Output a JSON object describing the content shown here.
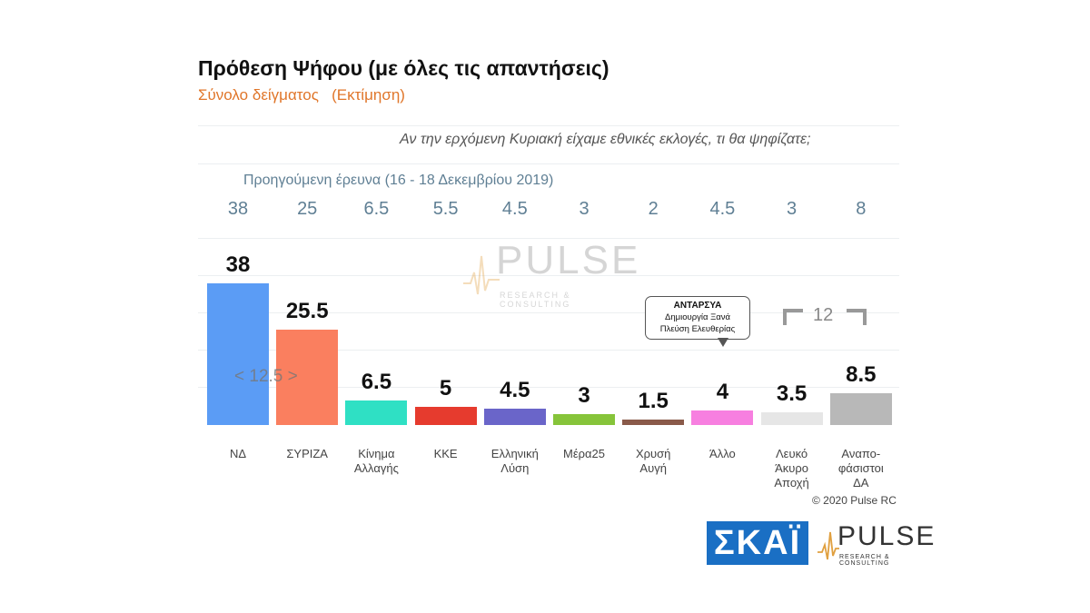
{
  "chart_data": {
    "type": "bar",
    "title": "Πρόθεση Ψήφου (με όλες τις απαντήσεις)",
    "subtitle": "Σύνολο δείγματος   (Εκτίμηση)",
    "question": "Αν την ερχόμενη Κυριακή είχαμε εθνικές εκλογές, τι θα ψηφίζατε;",
    "previous_survey_label": "Προηγούμενη έρευνα  (16 - 18 Δεκεμβρίου  2019)",
    "categories": [
      "ΝΔ",
      "ΣΥΡΙΖΑ",
      "Κίνημα Αλλαγής",
      "ΚΚΕ",
      "Ελληνική Λύση",
      "Μέρα25",
      "Χρυσή Αυγή",
      "Άλλο",
      "Λευκό Άκυρο Αποχή",
      "Αναπο-φάσιστοι ΔΑ"
    ],
    "category_lines": [
      [
        "ΝΔ"
      ],
      [
        "ΣΥΡΙΖΑ"
      ],
      [
        "Κίνημα",
        "Αλλαγής"
      ],
      [
        "ΚΚΕ"
      ],
      [
        "Ελληνική",
        "Λύση"
      ],
      [
        "Μέρα25"
      ],
      [
        "Χρυσή",
        "Αυγή"
      ],
      [
        "Άλλο"
      ],
      [
        "Λευκό",
        "Άκυρο",
        "Αποχή"
      ],
      [
        "Αναπο-",
        "φάσιστοι",
        "ΔΑ"
      ]
    ],
    "values": [
      38,
      25.5,
      6.5,
      5,
      4.5,
      3,
      1.5,
      4,
      3.5,
      8.5
    ],
    "value_labels": [
      "38",
      "25.5",
      "6.5",
      "5",
      "4.5",
      "3",
      "1.5",
      "4",
      "3.5",
      "8.5"
    ],
    "previous_values": [
      "38",
      "25",
      "6.5",
      "5.5",
      "4.5",
      "3",
      "2",
      "4.5",
      "3",
      "8"
    ],
    "colors": [
      "#5b9cf5",
      "#fa7f5f",
      "#2fe0c4",
      "#e63b2e",
      "#6a65c9",
      "#86c43a",
      "#8a5a4a",
      "#f77fe0",
      "#e6e6e6",
      "#b8b8b8"
    ],
    "ylim": [
      0,
      40
    ],
    "annotations": {
      "gap": "< 12.5 >",
      "callout_title": "ΑΝΤΑΡΣΥΑ",
      "callout_line1": "Δημιουργία Ξανά",
      "callout_line2": "Πλεύση Ελευθερίας",
      "bracket_value": "12"
    }
  },
  "watermark": {
    "brand": "PULSE",
    "tagline": "RESEARCH & CONSULTING"
  },
  "footer": {
    "copyright": "© 2020 Pulse RC",
    "logo_skai": "ΣΚΑΪ",
    "logo_pulse": "PULSE",
    "logo_pulse_tagline": "RESEARCH & CONSULTING"
  }
}
